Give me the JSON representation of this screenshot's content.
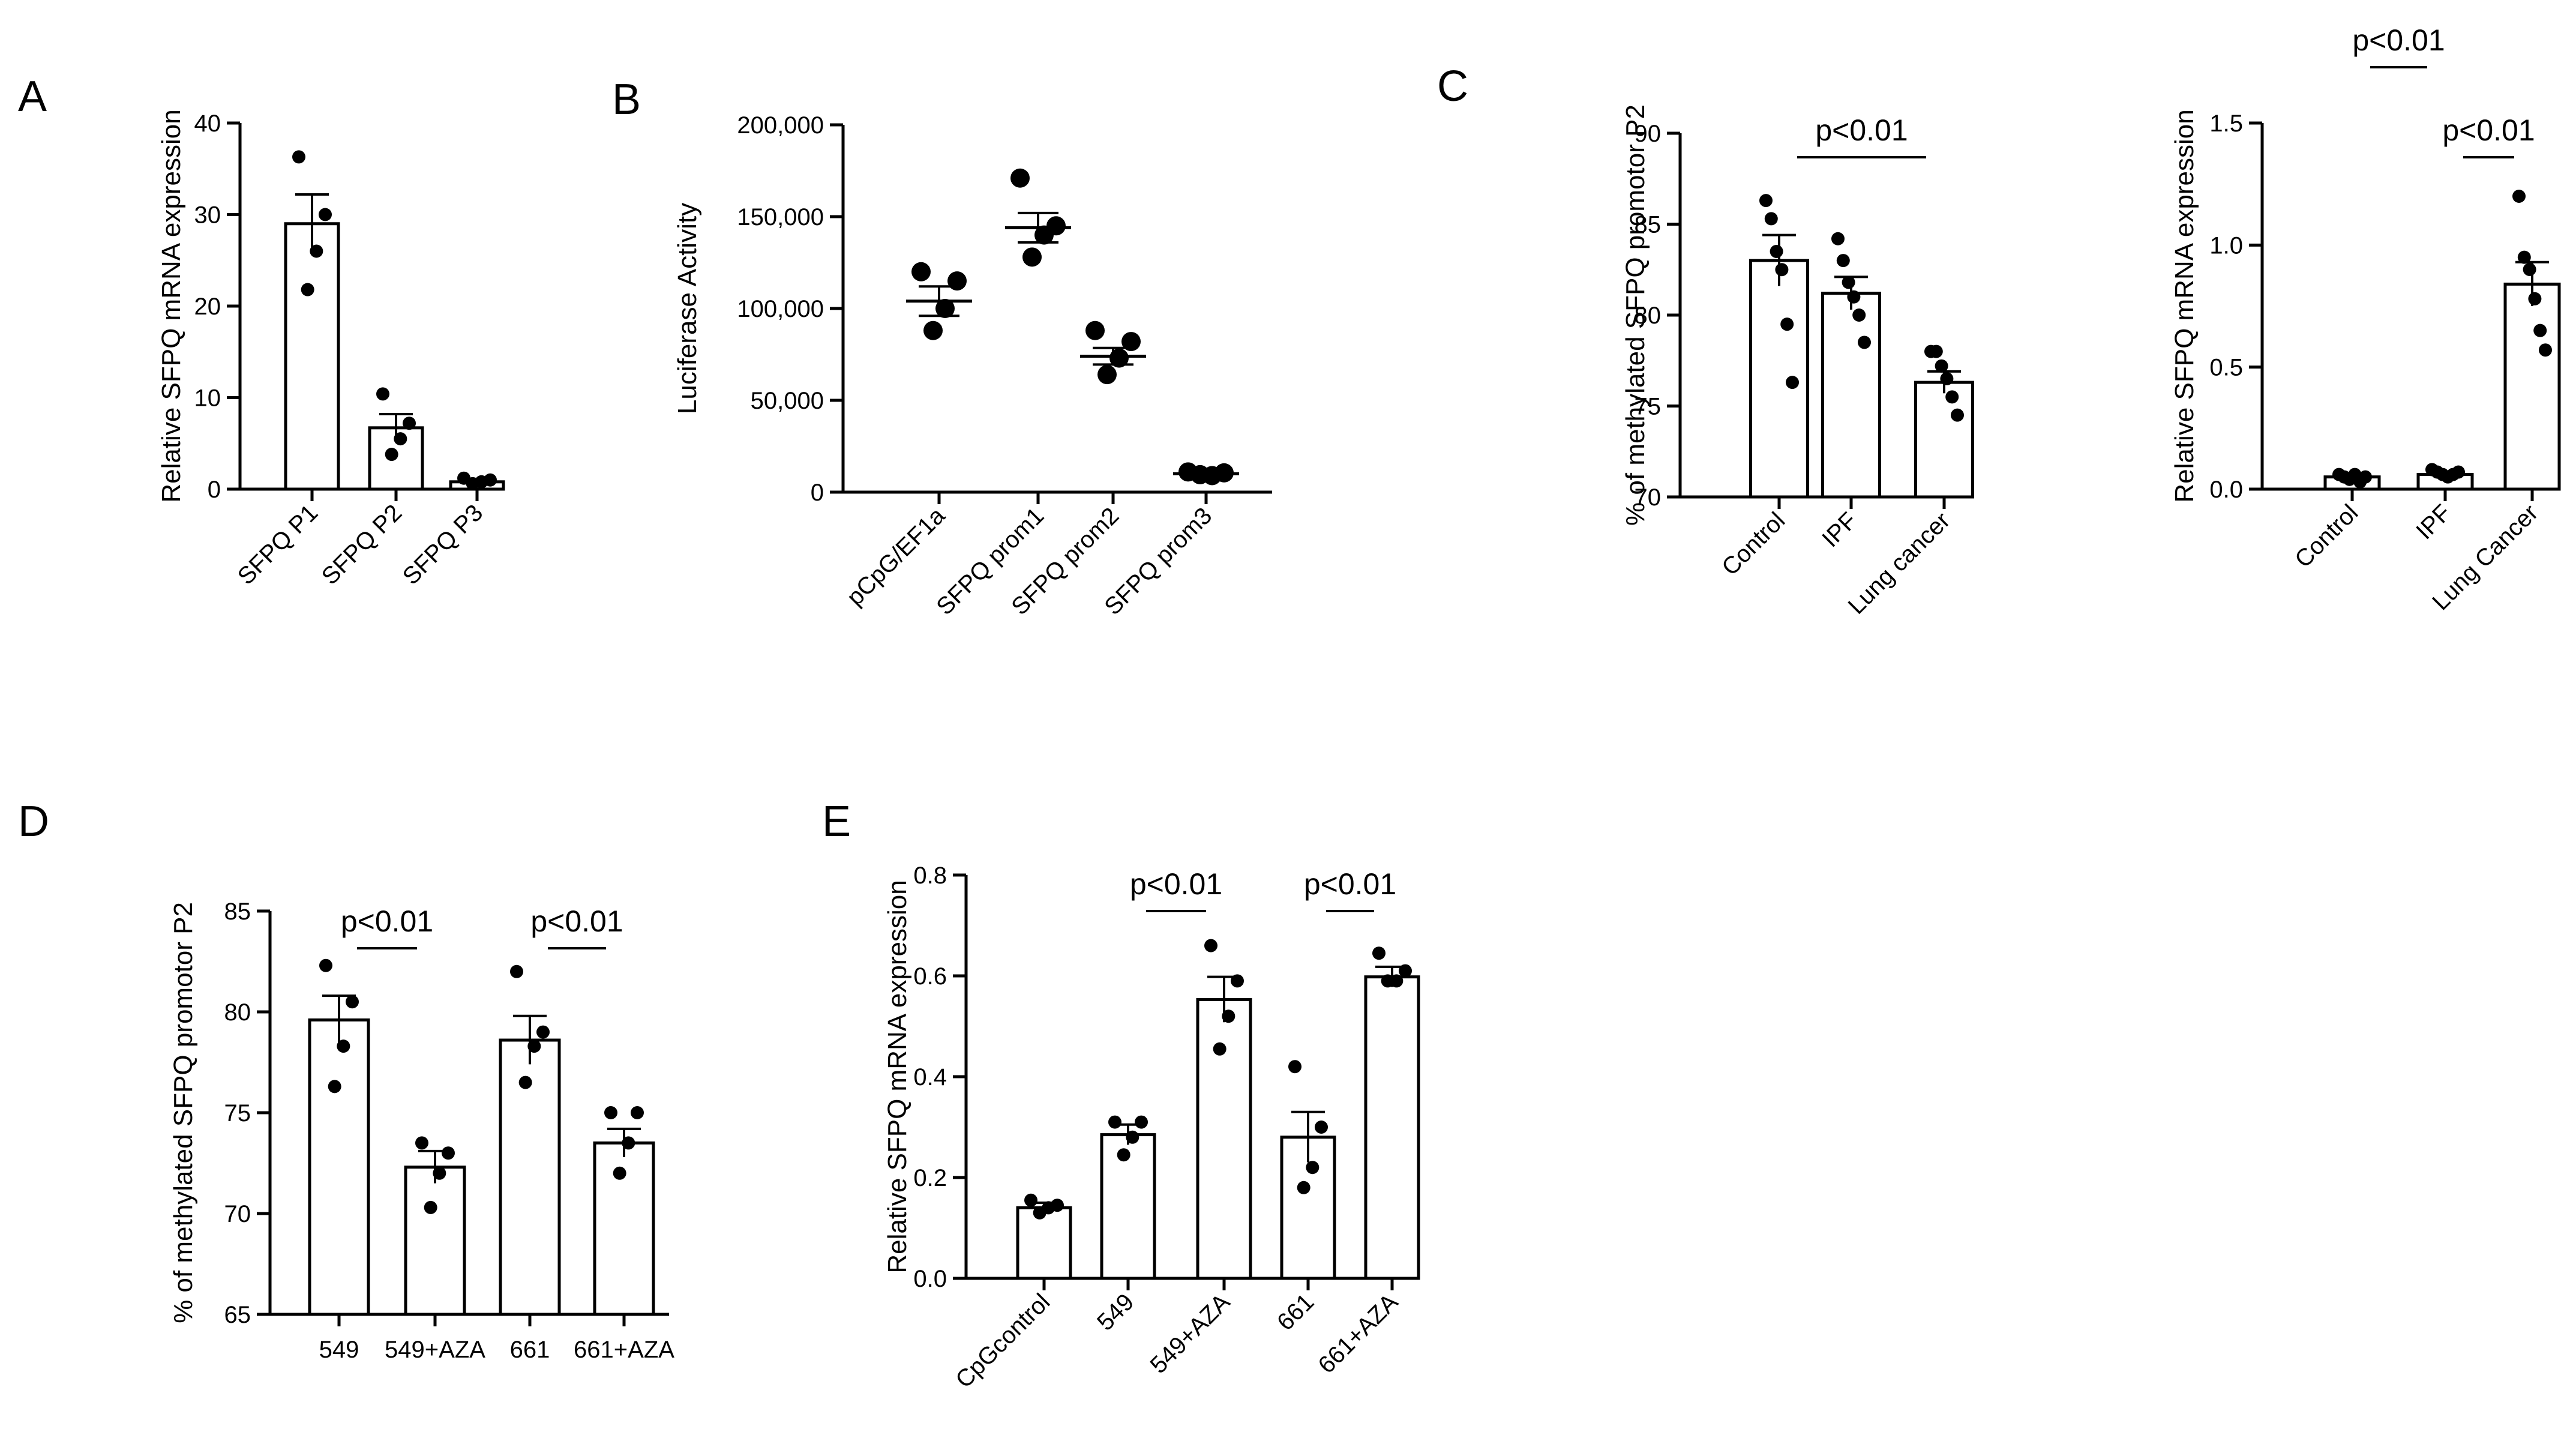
{
  "chart_data": [
    {
      "panel": "A",
      "type": "bar",
      "title": "",
      "xlabel": "",
      "ylabel": "Relative SFPQ mRNA expression",
      "ylim": [
        0,
        40
      ],
      "yticks": [
        0,
        10,
        20,
        30,
        40
      ],
      "yticklabels": [
        "0",
        "10",
        "20",
        "30",
        "40"
      ],
      "categories": [
        "SFPQ P1",
        "SFPQ P2",
        "SFPQ P3"
      ],
      "values": [
        29.0,
        6.7,
        0.8
      ],
      "sem": [
        3.2,
        1.5,
        0.2
      ],
      "points": [
        [
          36.3,
          30.0,
          26.0,
          21.8
        ],
        [
          10.4,
          7.2,
          5.5,
          3.8
        ],
        [
          1.2,
          1.0,
          0.8,
          0.6
        ]
      ],
      "significance": []
    },
    {
      "panel": "B",
      "type": "scatter",
      "title": "",
      "xlabel": "",
      "ylabel": "Luciferase Activity",
      "ylim": [
        0,
        200000
      ],
      "yticks": [
        0,
        50000,
        100000,
        150000,
        200000
      ],
      "yticklabels": [
        "0",
        "50,000",
        "100,000",
        "150,000",
        "200,000"
      ],
      "categories": [
        "pCpG/EF1a",
        "SFPQ prom1",
        "SFPQ prom2",
        "SFPQ prom3"
      ],
      "values": [
        104000,
        144000,
        74000,
        10000
      ],
      "sem": [
        8000,
        8000,
        4500,
        1000
      ],
      "points": [
        [
          120000,
          115000,
          100000,
          88000
        ],
        [
          171000,
          145000,
          140000,
          128000
        ],
        [
          88000,
          82000,
          73000,
          64000
        ],
        [
          11000,
          10500,
          9000,
          9500
        ]
      ],
      "significance": []
    },
    {
      "panel": "C",
      "type": "bar",
      "title": "",
      "xlabel": "",
      "ylabel": "% of methylated SFPQ promotor P2",
      "ylim": [
        70,
        90
      ],
      "yticks": [
        70,
        75,
        80,
        85,
        90
      ],
      "yticklabels": [
        "70",
        "75",
        "80",
        "85",
        "90"
      ],
      "categories": [
        "Control",
        "IPF",
        "Lung cancer"
      ],
      "values": [
        83.0,
        81.2,
        76.3
      ],
      "sem": [
        1.4,
        0.9,
        0.6
      ],
      "points": [
        [
          86.3,
          85.3,
          83.5,
          82.5,
          79.5,
          76.3
        ],
        [
          84.2,
          83.0,
          81.8,
          81.0,
          80.0,
          78.5
        ],
        [
          78.0,
          78.0,
          77.2,
          76.5,
          75.5,
          74.5
        ]
      ],
      "significance": [
        {
          "from": 0,
          "to": 2,
          "text": "p<0.01"
        }
      ]
    },
    {
      "panel": "C2",
      "type": "bar",
      "title": "",
      "xlabel": "",
      "ylabel": "Relative SFPQ mRNA expression",
      "ylim": [
        0,
        1.5
      ],
      "yticks": [
        0,
        0.5,
        1.0,
        1.5
      ],
      "yticklabels": [
        "0.0",
        "0.5",
        "1.0",
        "1.5"
      ],
      "categories": [
        "Control",
        "IPF",
        "Lung Cancer"
      ],
      "values": [
        0.05,
        0.06,
        0.84
      ],
      "sem": [
        0.01,
        0.01,
        0.09
      ],
      "points": [
        [
          0.06,
          0.05,
          0.04,
          0.06,
          0.03,
          0.05
        ],
        [
          0.08,
          0.07,
          0.06,
          0.05,
          0.06,
          0.07
        ],
        [
          1.2,
          0.95,
          0.9,
          0.78,
          0.65,
          0.57
        ]
      ],
      "significance": [
        {
          "from": 0,
          "to": 1,
          "text": "p<0.01"
        },
        {
          "from": 1,
          "to": 2,
          "text": "p<0.01"
        }
      ]
    },
    {
      "panel": "D",
      "type": "bar",
      "title": "",
      "xlabel": "",
      "ylabel": "% of methylated SFPQ promotor P2",
      "ylim": [
        65,
        85
      ],
      "yticks": [
        65,
        70,
        75,
        80,
        85
      ],
      "yticklabels": [
        "65",
        "70",
        "75",
        "80",
        "85"
      ],
      "categories": [
        "549",
        "549+AZA",
        "661",
        "661+AZA"
      ],
      "values": [
        79.6,
        72.3,
        78.6,
        73.5
      ],
      "sem": [
        1.2,
        0.8,
        1.2,
        0.7
      ],
      "points": [
        [
          82.3,
          80.5,
          78.3,
          76.3
        ],
        [
          73.5,
          73.0,
          72.0,
          70.3
        ],
        [
          82.0,
          79.0,
          78.3,
          76.5
        ],
        [
          75.0,
          75.0,
          73.5,
          72.0
        ]
      ],
      "significance": [
        {
          "from": 0,
          "to": 1,
          "text": "p<0.01"
        },
        {
          "from": 2,
          "to": 3,
          "text": "p<0.01"
        }
      ]
    },
    {
      "panel": "E",
      "type": "bar",
      "title": "",
      "xlabel": "",
      "ylabel": "Relative SFPQ mRNA expression",
      "ylim": [
        0,
        0.8
      ],
      "yticks": [
        0,
        0.2,
        0.4,
        0.6,
        0.8
      ],
      "yticklabels": [
        "0.0",
        "0.2",
        "0.4",
        "0.6",
        "0.8"
      ],
      "categories": [
        "CpGcontrol",
        "549",
        "549+AZA",
        "661",
        "661+AZA"
      ],
      "values": [
        0.14,
        0.285,
        0.553,
        0.28,
        0.598
      ],
      "sem": [
        0.01,
        0.02,
        0.045,
        0.05,
        0.02
      ],
      "points": [
        [
          0.155,
          0.145,
          0.14,
          0.13
        ],
        [
          0.31,
          0.31,
          0.28,
          0.245
        ],
        [
          0.66,
          0.59,
          0.52,
          0.455
        ],
        [
          0.42,
          0.3,
          0.22,
          0.18
        ],
        [
          0.645,
          0.61,
          0.59,
          0.59
        ]
      ],
      "significance": [
        {
          "from": 1,
          "to": 2,
          "text": "p<0.01"
        },
        {
          "from": 3,
          "to": 4,
          "text": "p<0.01"
        }
      ]
    }
  ]
}
